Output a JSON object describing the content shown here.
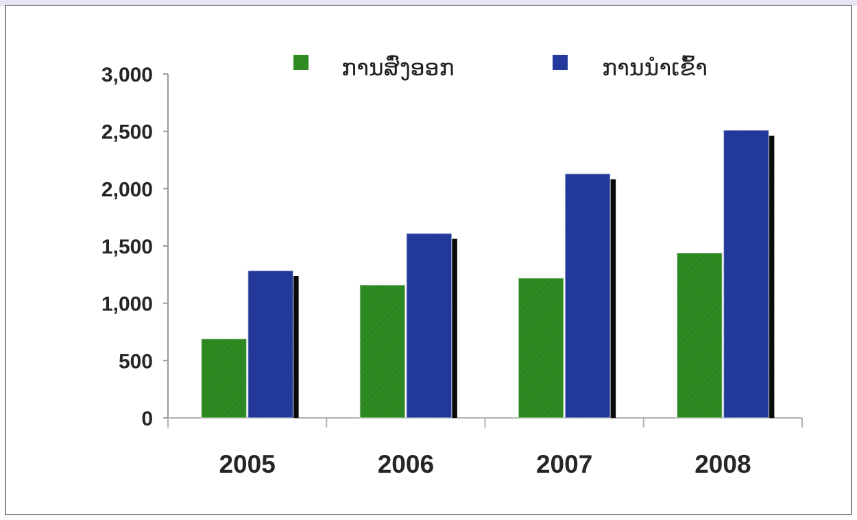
{
  "chart_data": {
    "type": "bar",
    "title": "",
    "xlabel": "",
    "ylabel": "",
    "categories": [
      "2005",
      "2006",
      "2007",
      "2008"
    ],
    "series": [
      {
        "name": "ການສົ່ງອອກ",
        "color": "#2e8b22",
        "values": [
          690,
          1160,
          1220,
          1440
        ]
      },
      {
        "name": "ການນຳເຂົ້າ",
        "color": "#233a9c",
        "values": [
          1285,
          1610,
          2130,
          2510
        ]
      }
    ],
    "ylim": [
      0,
      3000
    ],
    "yticks": [
      0,
      500,
      1000,
      1500,
      2000,
      2500,
      3000
    ],
    "ytick_labels": [
      "0",
      "500",
      "1,000",
      "1,500",
      "2,000",
      "2,500",
      "3,000"
    ],
    "grid": false,
    "legend_position": "top"
  }
}
